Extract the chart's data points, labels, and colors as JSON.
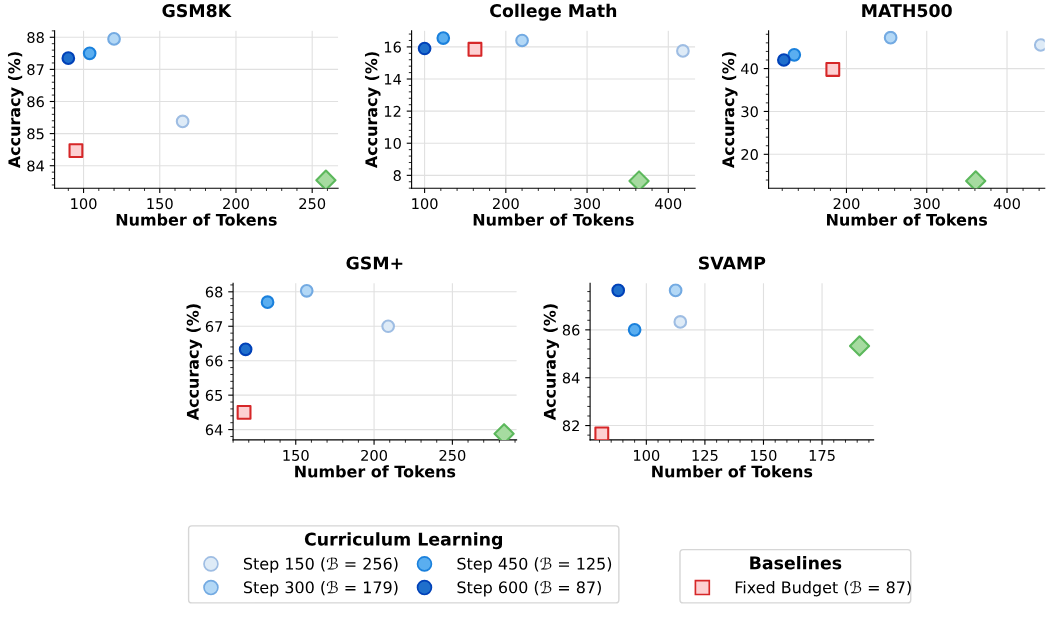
{
  "chart_data": [
    {
      "type": "scatter",
      "title": "GSM8K",
      "xlabel": "Number of Tokens",
      "ylabel": "Accuracy (%)",
      "xlim": [
        81,
        267
      ],
      "ylim": [
        83.3,
        88.2
      ],
      "xticks": [
        100,
        150,
        200,
        250
      ],
      "yticks": [
        84,
        85,
        86,
        87,
        88
      ],
      "grid": true,
      "legend": "bottom",
      "legend_title": "Curriculum Learning",
      "series": [
        {
          "name": "Step 150 (ℬ = 256)",
          "color": "#deebf7",
          "marker": "circle",
          "x": [
            165
          ],
          "values": [
            85.38
          ]
        },
        {
          "name": "Step 300 (ℬ = 179)",
          "color": "#b3d8f6",
          "marker": "circle",
          "x": [
            120
          ],
          "values": [
            87.95
          ]
        },
        {
          "name": "Step 450 (ℬ = 125)",
          "color": "#5aaef0",
          "marker": "circle",
          "x": [
            104
          ],
          "values": [
            87.5
          ]
        },
        {
          "name": "Step 600 (ℬ = 87)",
          "color": "#1f6fcc",
          "marker": "circle",
          "x": [
            90
          ],
          "values": [
            87.35
          ]
        },
        {
          "color": "#a6dba0",
          "marker": "diamond",
          "x": [
            259
          ],
          "values": [
            83.55
          ]
        },
        {
          "color": "#fdd0d2",
          "marker": "square",
          "x": [
            95
          ],
          "values": [
            84.47
          ]
        }
      ]
    },
    {
      "type": "scatter",
      "title": "College Math",
      "xlabel": "Number of Tokens",
      "ylabel": "Accuracy (%)",
      "xlim": [
        84,
        433
      ],
      "ylim": [
        7.2,
        17.0
      ],
      "xticks": [
        100,
        200,
        300,
        400
      ],
      "yticks": [
        8,
        10,
        12,
        14,
        16
      ],
      "grid": true,
      "legend": "bottom",
      "legend_title": "Baselines",
      "series": [
        {
          "color": "#deebf7",
          "marker": "circle",
          "x": [
            418
          ],
          "values": [
            15.75
          ]
        },
        {
          "color": "#b3d8f6",
          "marker": "circle",
          "x": [
            220
          ],
          "values": [
            16.4
          ]
        },
        {
          "color": "#5aaef0",
          "marker": "circle",
          "x": [
            123
          ],
          "values": [
            16.55
          ]
        },
        {
          "color": "#1f6fcc",
          "marker": "circle",
          "x": [
            100
          ],
          "values": [
            15.9
          ]
        },
        {
          "color": "#a6dba0",
          "marker": "diamond",
          "x": [
            364
          ],
          "values": [
            7.65
          ]
        },
        {
          "name": "Fixed Budget (ℬ = 87)",
          "color": "#fdd0d2",
          "marker": "square",
          "x": [
            162
          ],
          "values": [
            15.85
          ]
        }
      ]
    },
    {
      "type": "scatter",
      "title": "MATH500",
      "xlabel": "Number of Tokens",
      "ylabel": "Accuracy (%)",
      "xlim": [
        103,
        447
      ],
      "ylim": [
        12.1,
        48.8
      ],
      "xticks": [
        200,
        300,
        400
      ],
      "yticks": [
        20,
        30,
        40
      ],
      "grid": true,
      "series": [
        {
          "color": "#deebf7",
          "marker": "circle",
          "x": [
            442
          ],
          "values": [
            45.5
          ]
        },
        {
          "color": "#b3d8f6",
          "marker": "circle",
          "x": [
            255
          ],
          "values": [
            47.2
          ]
        },
        {
          "color": "#5aaef0",
          "marker": "circle",
          "x": [
            135
          ],
          "values": [
            43.2
          ]
        },
        {
          "color": "#1f6fcc",
          "marker": "circle",
          "x": [
            122
          ],
          "values": [
            42.0
          ]
        },
        {
          "color": "#a6dba0",
          "marker": "diamond",
          "x": [
            361
          ],
          "values": [
            13.8
          ]
        },
        {
          "color": "#fdd0d2",
          "marker": "square",
          "x": [
            183
          ],
          "values": [
            39.8
          ]
        }
      ]
    },
    {
      "type": "scatter",
      "title": "GSM+",
      "xlabel": "Number of Tokens",
      "ylabel": "Accuracy (%)",
      "xlim": [
        110,
        291
      ],
      "ylim": [
        63.7,
        68.25
      ],
      "xticks": [
        150,
        200,
        250
      ],
      "yticks": [
        64,
        65,
        66,
        67,
        68
      ],
      "grid": true,
      "series": [
        {
          "color": "#deebf7",
          "marker": "circle",
          "x": [
            209
          ],
          "values": [
            67.0
          ]
        },
        {
          "color": "#b3d8f6",
          "marker": "circle",
          "x": [
            157
          ],
          "values": [
            68.03
          ]
        },
        {
          "color": "#5aaef0",
          "marker": "circle",
          "x": [
            132
          ],
          "values": [
            67.7
          ]
        },
        {
          "color": "#1f6fcc",
          "marker": "circle",
          "x": [
            118
          ],
          "values": [
            66.33
          ]
        },
        {
          "color": "#a6dba0",
          "marker": "diamond",
          "x": [
            283
          ],
          "values": [
            63.88
          ]
        },
        {
          "color": "#fdd0d2",
          "marker": "square",
          "x": [
            117
          ],
          "values": [
            64.5
          ]
        }
      ]
    },
    {
      "type": "scatter",
      "title": "SVAMP",
      "xlabel": "Number of Tokens",
      "ylabel": "Accuracy (%)",
      "xlim": [
        76,
        197
      ],
      "ylim": [
        81.4,
        87.95
      ],
      "xticks": [
        100,
        125,
        150,
        175
      ],
      "yticks": [
        82,
        84,
        86
      ],
      "grid": true,
      "series": [
        {
          "color": "#deebf7",
          "marker": "circle",
          "x": [
            114.5
          ],
          "values": [
            86.33
          ]
        },
        {
          "color": "#b3d8f6",
          "marker": "circle",
          "x": [
            112.5
          ],
          "values": [
            87.65
          ]
        },
        {
          "color": "#5aaef0",
          "marker": "circle",
          "x": [
            95
          ],
          "values": [
            86.0
          ]
        },
        {
          "color": "#1f6fcc",
          "marker": "circle",
          "x": [
            88
          ],
          "values": [
            87.65
          ]
        },
        {
          "color": "#a6dba0",
          "marker": "diamond",
          "x": [
            191
          ],
          "values": [
            85.33
          ]
        },
        {
          "color": "#fdd0d2",
          "marker": "square",
          "x": [
            81
          ],
          "values": [
            81.65
          ]
        }
      ]
    }
  ]
}
